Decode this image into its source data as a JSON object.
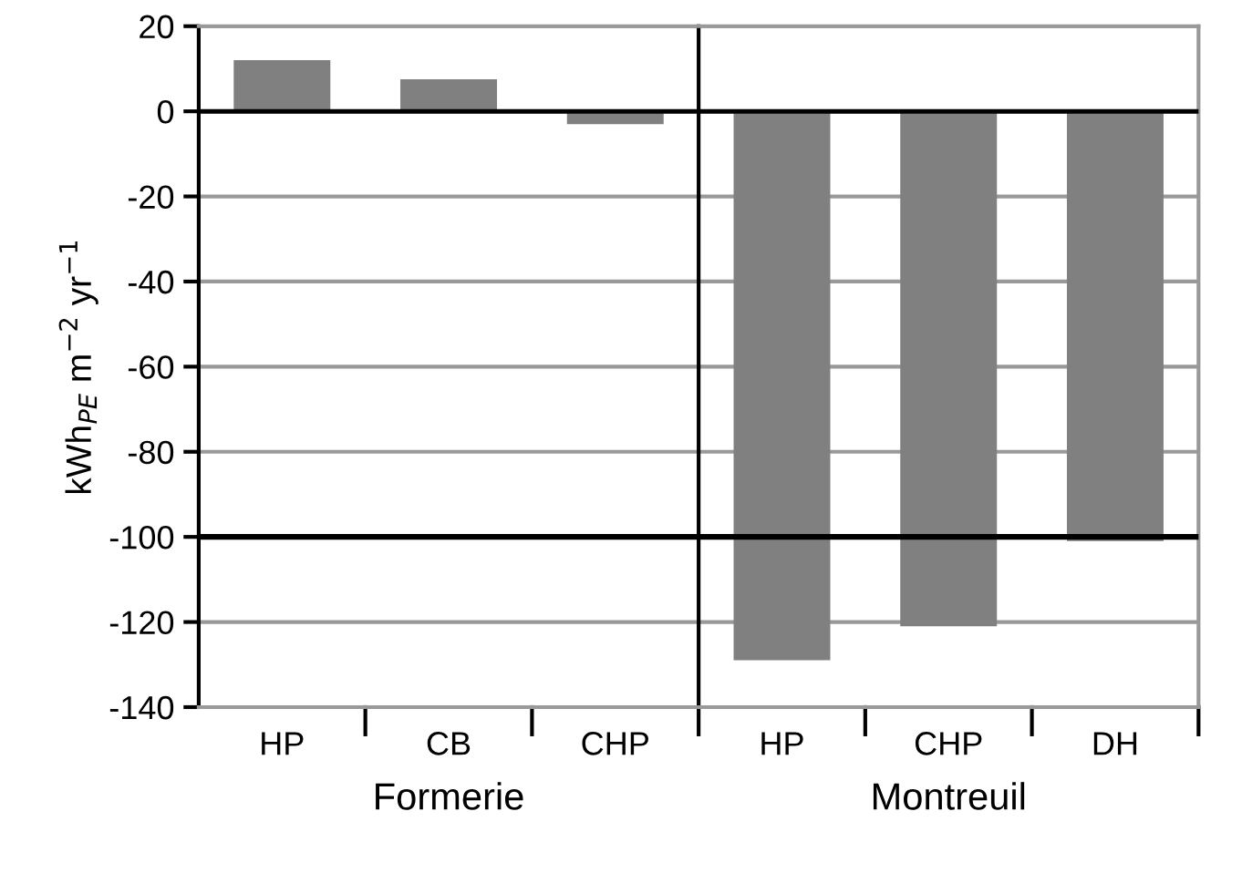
{
  "chart_data": [
    {
      "type": "bar",
      "ylabel": "kWh$_{PE}$ m$^{−2}$ yr$^{−1}$",
      "xlabel": "Formerie",
      "categories": [
        "HP",
        "CB",
        "CHP"
      ],
      "values": [
        12,
        7.5,
        -3
      ],
      "color": "#808080",
      "ylim": [
        -140,
        20
      ],
      "yticks": [
        -140,
        -120,
        -100,
        -80,
        -60,
        -40,
        -20,
        0,
        20
      ],
      "grid": "y",
      "ref_lines": [
        {
          "axis": "y",
          "value": -100,
          "color": "#000000"
        }
      ]
    },
    {
      "type": "bar",
      "xlabel": "Montreuil",
      "categories": [
        "HP",
        "CHP",
        "DH"
      ],
      "values": [
        -129,
        -121,
        -101
      ],
      "color": "#808080",
      "ylim": [
        -140,
        20
      ],
      "grid": "y",
      "tick_labels": "x",
      "ref_lines": [
        {
          "axis": "y",
          "value": -100,
          "color": "#000000"
        }
      ]
    }
  ]
}
